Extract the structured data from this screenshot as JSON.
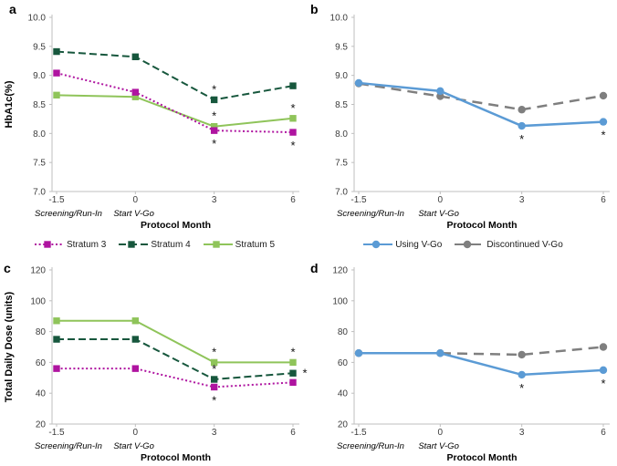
{
  "figure_title": "",
  "sig_symbol": "*",
  "colors": {
    "stratum3": "#AF14A0",
    "stratum4": "#17573D",
    "stratum5": "#8FC45A",
    "using_vgo": "#5B9BD5",
    "discontinued_vgo": "#7F7F7F",
    "axis": "#BFBFBF",
    "tick_text": "#3C3C3C",
    "text": "#000000"
  },
  "chart_data": [
    {
      "panel_label": "a",
      "type": "line",
      "ylabel": "HbA1c(%)",
      "xlabel": "Protocol Month",
      "categories": [
        "-1.5",
        "0",
        "3",
        "6"
      ],
      "category_notes": [
        "Screening/Run-In",
        "Start V-Go",
        "",
        ""
      ],
      "ylim": [
        7.0,
        10.0
      ],
      "yticks": [
        7.0,
        7.5,
        8.0,
        8.5,
        9.0,
        9.5,
        10.0
      ],
      "ytick_labels": [
        "7.0",
        "7.5",
        "8.0",
        "8.5",
        "9.0",
        "9.5",
        "10.0"
      ],
      "series": [
        {
          "name": "Stratum 5",
          "color": "#8FC45A",
          "line": "solid",
          "marker": "square",
          "values": [
            8.66,
            8.63,
            8.12,
            8.26
          ],
          "sig": [
            "",
            "",
            "above",
            "above"
          ]
        },
        {
          "name": "Stratum 4",
          "color": "#17573D",
          "line": "dashed",
          "marker": "square",
          "values": [
            9.41,
            9.32,
            8.58,
            8.82
          ],
          "sig": [
            "",
            "",
            "above",
            ""
          ]
        },
        {
          "name": "Stratum 3",
          "color": "#AF14A0",
          "line": "dotted",
          "marker": "square",
          "values": [
            9.04,
            8.71,
            8.05,
            8.02
          ],
          "sig": [
            "",
            "",
            "below",
            "below"
          ]
        }
      ]
    },
    {
      "panel_label": "b",
      "type": "line",
      "ylabel": "",
      "xlabel": "Protocol Month",
      "categories": [
        "-1.5",
        "0",
        "3",
        "6"
      ],
      "category_notes": [
        "Screening/Run-In",
        "Start V-Go",
        "",
        ""
      ],
      "ylim": [
        7.0,
        10.0
      ],
      "yticks": [
        7.0,
        7.5,
        8.0,
        8.5,
        9.0,
        9.5,
        10.0
      ],
      "ytick_labels": [
        "7.0",
        "7.5",
        "8.0",
        "8.5",
        "9.0",
        "9.5",
        "10.0"
      ],
      "series": [
        {
          "name": "Discontinued V-Go",
          "color": "#7F7F7F",
          "line": "longdash",
          "marker": "circle",
          "values": [
            8.86,
            8.64,
            8.41,
            8.65
          ],
          "sig": [
            "",
            "",
            "",
            ""
          ]
        },
        {
          "name": "Using V-Go",
          "color": "#5B9BD5",
          "line": "solid",
          "marker": "circle",
          "values": [
            8.87,
            8.73,
            8.13,
            8.2
          ],
          "sig": [
            "",
            "",
            "below",
            "below"
          ]
        }
      ]
    },
    {
      "panel_label": "c",
      "type": "line",
      "ylabel": "Total Daily Dose (units)",
      "xlabel": "Protocol Month",
      "categories": [
        "-1.5",
        "0",
        "3",
        "6"
      ],
      "category_notes": [
        "Screening/Run-In",
        "Start V-Go",
        "",
        ""
      ],
      "ylim": [
        20,
        120
      ],
      "yticks": [
        20,
        40,
        60,
        80,
        100,
        120
      ],
      "ytick_labels": [
        "20",
        "40",
        "60",
        "80",
        "100",
        "120"
      ],
      "series": [
        {
          "name": "Stratum 5",
          "color": "#8FC45A",
          "line": "solid",
          "marker": "square",
          "values": [
            87,
            87,
            60,
            60
          ],
          "sig": [
            "",
            "",
            "above",
            "above"
          ]
        },
        {
          "name": "Stratum 4",
          "color": "#17573D",
          "line": "dashed",
          "marker": "square",
          "values": [
            75,
            75,
            49,
            53
          ],
          "sig": [
            "",
            "",
            "above",
            "right"
          ]
        },
        {
          "name": "Stratum 3",
          "color": "#AF14A0",
          "line": "dotted",
          "marker": "square",
          "values": [
            56,
            56,
            44,
            47
          ],
          "sig": [
            "",
            "",
            "below",
            ""
          ]
        }
      ]
    },
    {
      "panel_label": "d",
      "type": "line",
      "ylabel": "",
      "xlabel": "Protocol Month",
      "categories": [
        "-1.5",
        "0",
        "3",
        "6"
      ],
      "category_notes": [
        "Screening/Run-In",
        "Start V-Go",
        "",
        ""
      ],
      "ylim": [
        20,
        120
      ],
      "yticks": [
        20,
        40,
        60,
        80,
        100,
        120
      ],
      "ytick_labels": [
        "20",
        "40",
        "60",
        "80",
        "100",
        "120"
      ],
      "series": [
        {
          "name": "Discontinued V-Go",
          "color": "#7F7F7F",
          "line": "longdash",
          "marker": "circle",
          "values": [
            66,
            66,
            65,
            70
          ],
          "sig": [
            "",
            "",
            "",
            ""
          ]
        },
        {
          "name": "Using V-Go",
          "color": "#5B9BD5",
          "line": "solid",
          "marker": "circle",
          "values": [
            66,
            66,
            52,
            55
          ],
          "sig": [
            "",
            "",
            "below",
            "below"
          ]
        }
      ]
    }
  ],
  "legends": [
    {
      "items": [
        {
          "label": "Stratum 3",
          "color": "#AF14A0",
          "line": "dotted",
          "marker": "square"
        },
        {
          "label": "Stratum 4",
          "color": "#17573D",
          "line": "dashed",
          "marker": "square"
        },
        {
          "label": "Stratum 5",
          "color": "#8FC45A",
          "line": "solid",
          "marker": "square"
        }
      ]
    },
    {
      "items": [
        {
          "label": "Using V-Go",
          "color": "#5B9BD5",
          "line": "solid",
          "marker": "circle"
        },
        {
          "label": "Discontinued V-Go",
          "color": "#7F7F7F",
          "line": "longdash",
          "marker": "circle"
        }
      ]
    }
  ]
}
